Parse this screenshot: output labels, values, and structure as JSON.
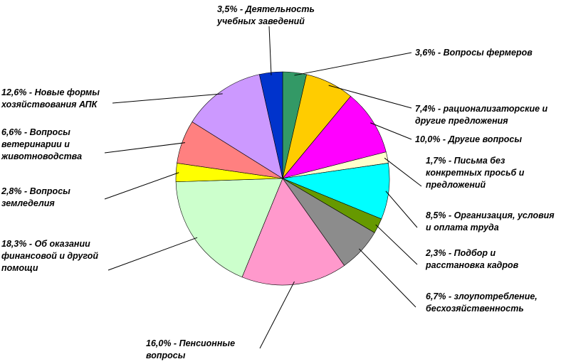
{
  "chart_data": {
    "type": "pie",
    "categories": [
      "Вопросы фермеров",
      "рационализаторские и другие предложения",
      "Другие вопросы",
      "Письма без конкретных просьб и предложений",
      "Организация, условия и оплата труда",
      "Подбор и расстановка кадров",
      "злоупотребление, бесхозяйственность",
      "Пенсионные вопросы",
      "Об оказании финансовой и другой помощи",
      "Вопросы земледелия",
      "Вопросы ветеринарии и животноводства",
      "Новые формы хозяйствования АПК",
      "Деятельность учебных заведений"
    ],
    "values": [
      3.6,
      7.4,
      10.0,
      1.7,
      8.5,
      2.3,
      6.7,
      16.0,
      18.3,
      2.8,
      6.6,
      12.6,
      3.5
    ],
    "value_labels": [
      "3,6% -",
      "7,4% -",
      "10,0% -",
      "1,7% -",
      "8,5% -",
      "2,3% -",
      "6,7% -",
      "16,0% -",
      "18,3% -",
      "2,8% -",
      "6,6% -",
      "12,6% -",
      "3,5% -"
    ],
    "colors": [
      "#339966",
      "#ffcc00",
      "#ff00ff",
      "#ffffcc",
      "#00ffff",
      "#669900",
      "#8c8c8c",
      "#ff99cc",
      "#ccffcc",
      "#ffff00",
      "#ff8080",
      "#cc99ff",
      "#0033cc"
    ]
  }
}
